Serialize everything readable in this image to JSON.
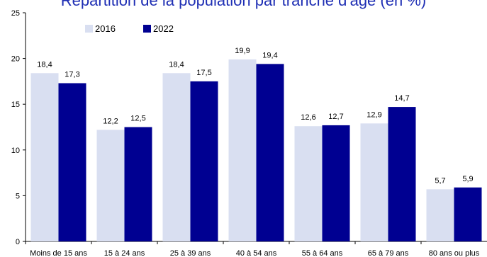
{
  "chart_data": {
    "type": "bar",
    "title": "Répartition de la population par tranche d'âge (en %)",
    "categories": [
      "Moins de 15 ans",
      "15 à 24 ans",
      "25 à 39 ans",
      "40 à 54 ans",
      "55 à 64 ans",
      "65 à 79 ans",
      "80 ans ou plus"
    ],
    "series": [
      {
        "name": "2016",
        "color": "#d9dff1",
        "values": [
          18.4,
          12.2,
          18.4,
          19.9,
          12.6,
          12.9,
          5.7
        ],
        "labels": [
          "18,4",
          "12,2",
          "18,4",
          "19,9",
          "12,6",
          "12,9",
          "5,7"
        ]
      },
      {
        "name": "2022",
        "color": "#000091",
        "values": [
          17.3,
          12.5,
          17.5,
          19.4,
          12.7,
          14.7,
          5.9
        ],
        "labels": [
          "17,3",
          "12,5",
          "17,5",
          "19,4",
          "12,7",
          "14,7",
          "5,9"
        ]
      }
    ],
    "yticks": [
      0,
      5,
      10,
      15,
      20,
      25
    ],
    "ylim": [
      0,
      25
    ],
    "legend_position": "top-left",
    "grid": false
  }
}
